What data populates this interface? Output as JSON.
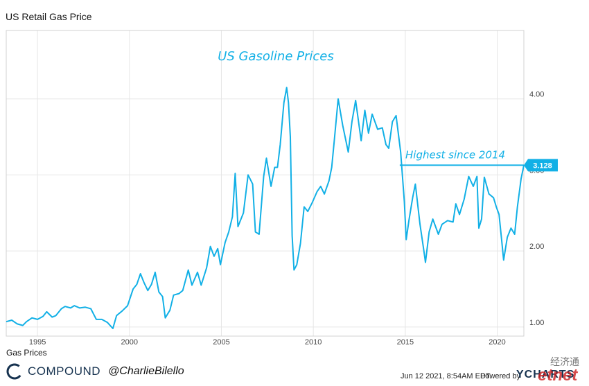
{
  "header": {
    "title": "US Retail Gas Price"
  },
  "chart_data": {
    "type": "line",
    "title": "US Retail Gas Price",
    "subtitle": "US Gasoline Prices",
    "xlabel": "",
    "ylabel": "",
    "xlim": [
      1993.3,
      2021.45
    ],
    "ylim": [
      0.88,
      4.9
    ],
    "x_ticks": [
      1995,
      2000,
      2005,
      2010,
      2015,
      2020
    ],
    "x_tick_labels": [
      "1995",
      "2000",
      "2005",
      "2010",
      "2015",
      "2020"
    ],
    "y_ticks": [
      1.0,
      2.0,
      3.0,
      4.0
    ],
    "y_tick_labels": [
      "1.00",
      "2.00",
      "3.00",
      "4.00"
    ],
    "y_axis_side": "right",
    "grid": "vertical lines at x ticks, horizontal lines at y ticks",
    "line_color": "#12b0e6",
    "annotation": {
      "text": "Highest since 2014",
      "reference_value": 3.128,
      "from_x": 2014.7
    },
    "last_value_label": "3.128",
    "series": [
      {
        "name": "Gas Prices",
        "points": [
          [
            1993.3,
            1.07
          ],
          [
            1993.6,
            1.09
          ],
          [
            1993.9,
            1.04
          ],
          [
            1994.2,
            1.02
          ],
          [
            1994.4,
            1.07
          ],
          [
            1994.7,
            1.12
          ],
          [
            1995.0,
            1.1
          ],
          [
            1995.3,
            1.14
          ],
          [
            1995.5,
            1.2
          ],
          [
            1995.8,
            1.13
          ],
          [
            1996.0,
            1.15
          ],
          [
            1996.3,
            1.24
          ],
          [
            1996.5,
            1.27
          ],
          [
            1996.8,
            1.25
          ],
          [
            1997.0,
            1.28
          ],
          [
            1997.3,
            1.25
          ],
          [
            1997.6,
            1.26
          ],
          [
            1997.9,
            1.24
          ],
          [
            1998.2,
            1.1
          ],
          [
            1998.5,
            1.1
          ],
          [
            1998.8,
            1.06
          ],
          [
            1999.1,
            0.98
          ],
          [
            1999.3,
            1.15
          ],
          [
            1999.6,
            1.21
          ],
          [
            1999.9,
            1.28
          ],
          [
            2000.2,
            1.5
          ],
          [
            2000.4,
            1.56
          ],
          [
            2000.6,
            1.7
          ],
          [
            2000.8,
            1.58
          ],
          [
            2001.0,
            1.48
          ],
          [
            2001.2,
            1.56
          ],
          [
            2001.4,
            1.72
          ],
          [
            2001.6,
            1.46
          ],
          [
            2001.8,
            1.4
          ],
          [
            2001.95,
            1.12
          ],
          [
            2002.2,
            1.22
          ],
          [
            2002.4,
            1.42
          ],
          [
            2002.7,
            1.44
          ],
          [
            2002.9,
            1.48
          ],
          [
            2003.2,
            1.75
          ],
          [
            2003.4,
            1.55
          ],
          [
            2003.7,
            1.72
          ],
          [
            2003.9,
            1.55
          ],
          [
            2004.2,
            1.78
          ],
          [
            2004.4,
            2.06
          ],
          [
            2004.6,
            1.93
          ],
          [
            2004.8,
            2.03
          ],
          [
            2004.95,
            1.82
          ],
          [
            2005.2,
            2.11
          ],
          [
            2005.4,
            2.25
          ],
          [
            2005.6,
            2.45
          ],
          [
            2005.75,
            3.02
          ],
          [
            2005.9,
            2.32
          ],
          [
            2006.2,
            2.5
          ],
          [
            2006.45,
            3.0
          ],
          [
            2006.7,
            2.88
          ],
          [
            2006.85,
            2.25
          ],
          [
            2007.05,
            2.22
          ],
          [
            2007.3,
            2.98
          ],
          [
            2007.45,
            3.22
          ],
          [
            2007.7,
            2.85
          ],
          [
            2007.9,
            3.1
          ],
          [
            2008.05,
            3.1
          ],
          [
            2008.2,
            3.4
          ],
          [
            2008.4,
            3.95
          ],
          [
            2008.55,
            4.15
          ],
          [
            2008.65,
            3.95
          ],
          [
            2008.75,
            3.5
          ],
          [
            2008.85,
            2.2
          ],
          [
            2008.95,
            1.75
          ],
          [
            2009.1,
            1.82
          ],
          [
            2009.3,
            2.1
          ],
          [
            2009.5,
            2.58
          ],
          [
            2009.7,
            2.52
          ],
          [
            2009.95,
            2.64
          ],
          [
            2010.2,
            2.78
          ],
          [
            2010.4,
            2.85
          ],
          [
            2010.6,
            2.75
          ],
          [
            2010.85,
            2.92
          ],
          [
            2011.0,
            3.1
          ],
          [
            2011.15,
            3.48
          ],
          [
            2011.35,
            4.0
          ],
          [
            2011.6,
            3.65
          ],
          [
            2011.9,
            3.3
          ],
          [
            2012.1,
            3.7
          ],
          [
            2012.3,
            3.98
          ],
          [
            2012.6,
            3.45
          ],
          [
            2012.8,
            3.85
          ],
          [
            2013.0,
            3.55
          ],
          [
            2013.2,
            3.8
          ],
          [
            2013.5,
            3.6
          ],
          [
            2013.75,
            3.62
          ],
          [
            2013.95,
            3.4
          ],
          [
            2014.1,
            3.35
          ],
          [
            2014.3,
            3.7
          ],
          [
            2014.5,
            3.78
          ],
          [
            2014.75,
            3.3
          ],
          [
            2014.95,
            2.65
          ],
          [
            2015.05,
            2.15
          ],
          [
            2015.2,
            2.4
          ],
          [
            2015.4,
            2.7
          ],
          [
            2015.55,
            2.88
          ],
          [
            2015.8,
            2.35
          ],
          [
            2016.0,
            2.02
          ],
          [
            2016.1,
            1.85
          ],
          [
            2016.3,
            2.25
          ],
          [
            2016.5,
            2.42
          ],
          [
            2016.8,
            2.22
          ],
          [
            2017.0,
            2.35
          ],
          [
            2017.3,
            2.4
          ],
          [
            2017.6,
            2.38
          ],
          [
            2017.75,
            2.62
          ],
          [
            2017.95,
            2.48
          ],
          [
            2018.2,
            2.68
          ],
          [
            2018.45,
            2.98
          ],
          [
            2018.7,
            2.85
          ],
          [
            2018.9,
            2.98
          ],
          [
            2019.0,
            2.3
          ],
          [
            2019.15,
            2.42
          ],
          [
            2019.3,
            2.97
          ],
          [
            2019.55,
            2.75
          ],
          [
            2019.8,
            2.7
          ],
          [
            2019.95,
            2.58
          ],
          [
            2020.1,
            2.48
          ],
          [
            2020.25,
            2.12
          ],
          [
            2020.35,
            1.88
          ],
          [
            2020.55,
            2.18
          ],
          [
            2020.75,
            2.3
          ],
          [
            2020.95,
            2.22
          ],
          [
            2021.1,
            2.58
          ],
          [
            2021.3,
            2.95
          ],
          [
            2021.45,
            3.128
          ]
        ]
      }
    ]
  },
  "legend": {
    "label": "Gas Prices"
  },
  "footer": {
    "brand": "COMPOUND",
    "handle": "@CharlieBilello",
    "timestamp": "Jun 12 2021, 8:54AM EDT.",
    "powered_by": "Powered by",
    "ycharts": "YCHARTS",
    "watermark": "经济通",
    "watermark_logo": "etnet"
  },
  "colors": {
    "line": "#12b0e6",
    "grid": "#e6e6e6",
    "axis_text": "#444444",
    "brand": "#16324f",
    "callout_bg": "#12b0e6"
  },
  "icons": {
    "brand_logo": "compound-c-icon"
  }
}
